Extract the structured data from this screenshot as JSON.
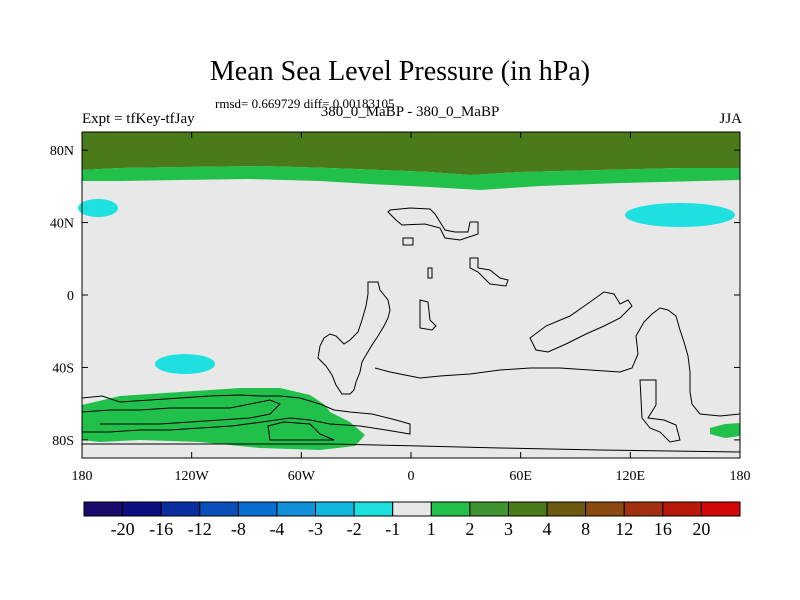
{
  "chart_data": {
    "type": "heatmap",
    "title": "Mean Sea Level Pressure (in hPa)",
    "stats": "rmsd= 0.669729  diff= 0.00183105",
    "left_label": "Expt = tfKey-tfJay",
    "center_label": "380_0_MaBP - 380_0_MaBP",
    "right_label": "JJA",
    "x_ticks": [
      "180",
      "120W",
      "60W",
      "0",
      "60E",
      "120E",
      "180"
    ],
    "y_ticks": [
      "80N",
      "40N",
      "0",
      "40S",
      "80S"
    ],
    "colorbar_labels": [
      "-20",
      "-16",
      "-12",
      "-8",
      "-4",
      "-3",
      "-2",
      "-1",
      "1",
      "2",
      "3",
      "4",
      "8",
      "12",
      "16",
      "20"
    ],
    "colorbar_colors": [
      "#1a0a6b",
      "#0e0e82",
      "#0a2fa0",
      "#0a50b8",
      "#0a6ed0",
      "#1090d8",
      "#10b8e0",
      "#1ee0e0",
      "#e8e8e8",
      "#20c04a",
      "#3e9430",
      "#4a7a1a",
      "#6b5a10",
      "#8a4a10",
      "#a03010",
      "#b81808",
      "#d40808"
    ],
    "xlim": [
      -180,
      180
    ],
    "ylim": [
      -90,
      90
    ],
    "regions": [
      {
        "level": "4",
        "description": "band north of ~65N"
      },
      {
        "level": "2",
        "description": "fringe ~55N-65N, Southern Ocean ~55S-80S"
      },
      {
        "level": "-1",
        "description": "patches near 45N 170W, 45N 140E, 37S 130W"
      }
    ]
  }
}
